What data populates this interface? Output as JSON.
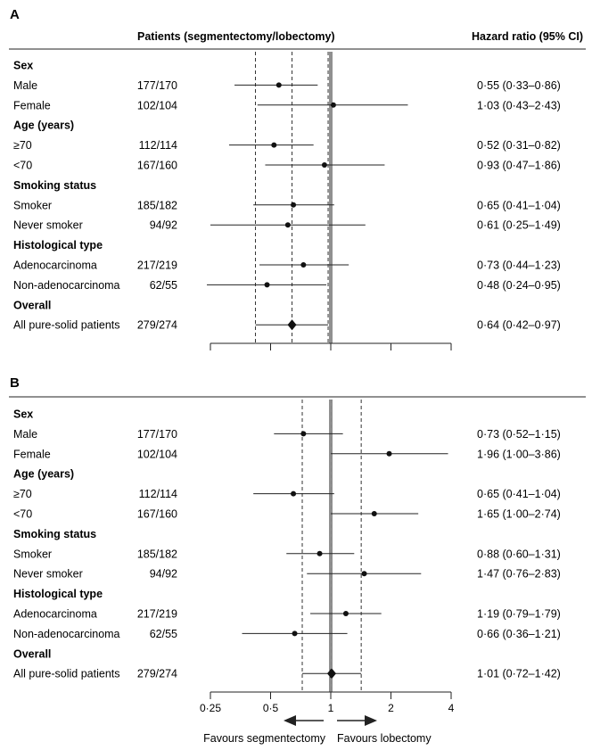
{
  "header": {
    "patients": "Patients (segmentectomy/lobectomy)",
    "hr": "Hazard ratio (95% CI)"
  },
  "axis": {
    "scale": "log2",
    "ticks": [
      0.25,
      0.5,
      1,
      2,
      4
    ],
    "tick_labels": [
      "0·25",
      "0·5",
      "1",
      "2",
      "4"
    ],
    "favours_left": "Favours segmentectomy",
    "favours_right": "Favours lobectomy"
  },
  "chart_data": [
    {
      "type": "forest",
      "panel": "A",
      "reference_line": 1,
      "dashed_lines": [
        0.42,
        0.64,
        0.97
      ],
      "rows": [
        {
          "kind": "group",
          "label": "Sex"
        },
        {
          "kind": "item",
          "label": "Male",
          "n": "177/170",
          "hr": 0.55,
          "lo": 0.33,
          "hi": 0.86,
          "text": "0·55 (0·33–0·86)"
        },
        {
          "kind": "item",
          "label": "Female",
          "n": "102/104",
          "hr": 1.03,
          "lo": 0.43,
          "hi": 2.43,
          "text": "1·03 (0·43–2·43)"
        },
        {
          "kind": "group",
          "label": "Age (years)"
        },
        {
          "kind": "item",
          "label": "≥70",
          "n": "112/114",
          "hr": 0.52,
          "lo": 0.31,
          "hi": 0.82,
          "text": "0·52 (0·31–0·82)"
        },
        {
          "kind": "item",
          "label": "<70",
          "n": "167/160",
          "hr": 0.93,
          "lo": 0.47,
          "hi": 1.86,
          "text": "0·93 (0·47–1·86)"
        },
        {
          "kind": "group",
          "label": "Smoking status"
        },
        {
          "kind": "item",
          "label": "Smoker",
          "n": "185/182",
          "hr": 0.65,
          "lo": 0.41,
          "hi": 1.04,
          "text": "0·65 (0·41–1·04)"
        },
        {
          "kind": "item",
          "label": "Never smoker",
          "n": "94/92",
          "hr": 0.61,
          "lo": 0.25,
          "hi": 1.49,
          "text": "0·61 (0·25–1·49)"
        },
        {
          "kind": "group",
          "label": "Histological type"
        },
        {
          "kind": "item",
          "label": "Adenocarcinoma",
          "n": "217/219",
          "hr": 0.73,
          "lo": 0.44,
          "hi": 1.23,
          "text": "0·73 (0·44–1·23)"
        },
        {
          "kind": "item",
          "label": "Non-adenocarcinoma",
          "n": "62/55",
          "hr": 0.48,
          "lo": 0.24,
          "hi": 0.95,
          "text": "0·48 (0·24–0·95)"
        },
        {
          "kind": "group",
          "label": "Overall"
        },
        {
          "kind": "overall",
          "label": "All pure-solid patients",
          "n": "279/274",
          "hr": 0.64,
          "lo": 0.42,
          "hi": 0.97,
          "text": "0·64 (0·42–0·97)"
        }
      ]
    },
    {
      "type": "forest",
      "panel": "B",
      "reference_line": 1,
      "dashed_lines": [
        0.72,
        1.01,
        1.42
      ],
      "rows": [
        {
          "kind": "group",
          "label": "Sex"
        },
        {
          "kind": "item",
          "label": "Male",
          "n": "177/170",
          "hr": 0.73,
          "lo": 0.52,
          "hi": 1.15,
          "text": "0·73 (0·52–1·15)"
        },
        {
          "kind": "item",
          "label": "Female",
          "n": "102/104",
          "hr": 1.96,
          "lo": 1.0,
          "hi": 3.86,
          "text": "1·96 (1·00–3·86)"
        },
        {
          "kind": "group",
          "label": "Age (years)"
        },
        {
          "kind": "item",
          "label": "≥70",
          "n": "112/114",
          "hr": 0.65,
          "lo": 0.41,
          "hi": 1.04,
          "text": "0·65 (0·41–1·04)"
        },
        {
          "kind": "item",
          "label": "<70",
          "n": "167/160",
          "hr": 1.65,
          "lo": 1.0,
          "hi": 2.74,
          "text": "1·65 (1·00–2·74)"
        },
        {
          "kind": "group",
          "label": "Smoking status"
        },
        {
          "kind": "item",
          "label": "Smoker",
          "n": "185/182",
          "hr": 0.88,
          "lo": 0.6,
          "hi": 1.31,
          "text": "0·88 (0·60–1·31)"
        },
        {
          "kind": "item",
          "label": "Never smoker",
          "n": "94/92",
          "hr": 1.47,
          "lo": 0.76,
          "hi": 2.83,
          "text": "1·47 (0·76–2·83)"
        },
        {
          "kind": "group",
          "label": "Histological type"
        },
        {
          "kind": "item",
          "label": "Adenocarcinoma",
          "n": "217/219",
          "hr": 1.19,
          "lo": 0.79,
          "hi": 1.79,
          "text": "1·19 (0·79–1·79)"
        },
        {
          "kind": "item",
          "label": "Non-adenocarcinoma",
          "n": "62/55",
          "hr": 0.66,
          "lo": 0.36,
          "hi": 1.21,
          "text": "0·66 (0·36–1·21)"
        },
        {
          "kind": "group",
          "label": "Overall"
        },
        {
          "kind": "overall",
          "label": "All pure-solid patients",
          "n": "279/274",
          "hr": 1.01,
          "lo": 0.72,
          "hi": 1.42,
          "text": "1·01 (0·72–1·42)"
        }
      ]
    }
  ]
}
